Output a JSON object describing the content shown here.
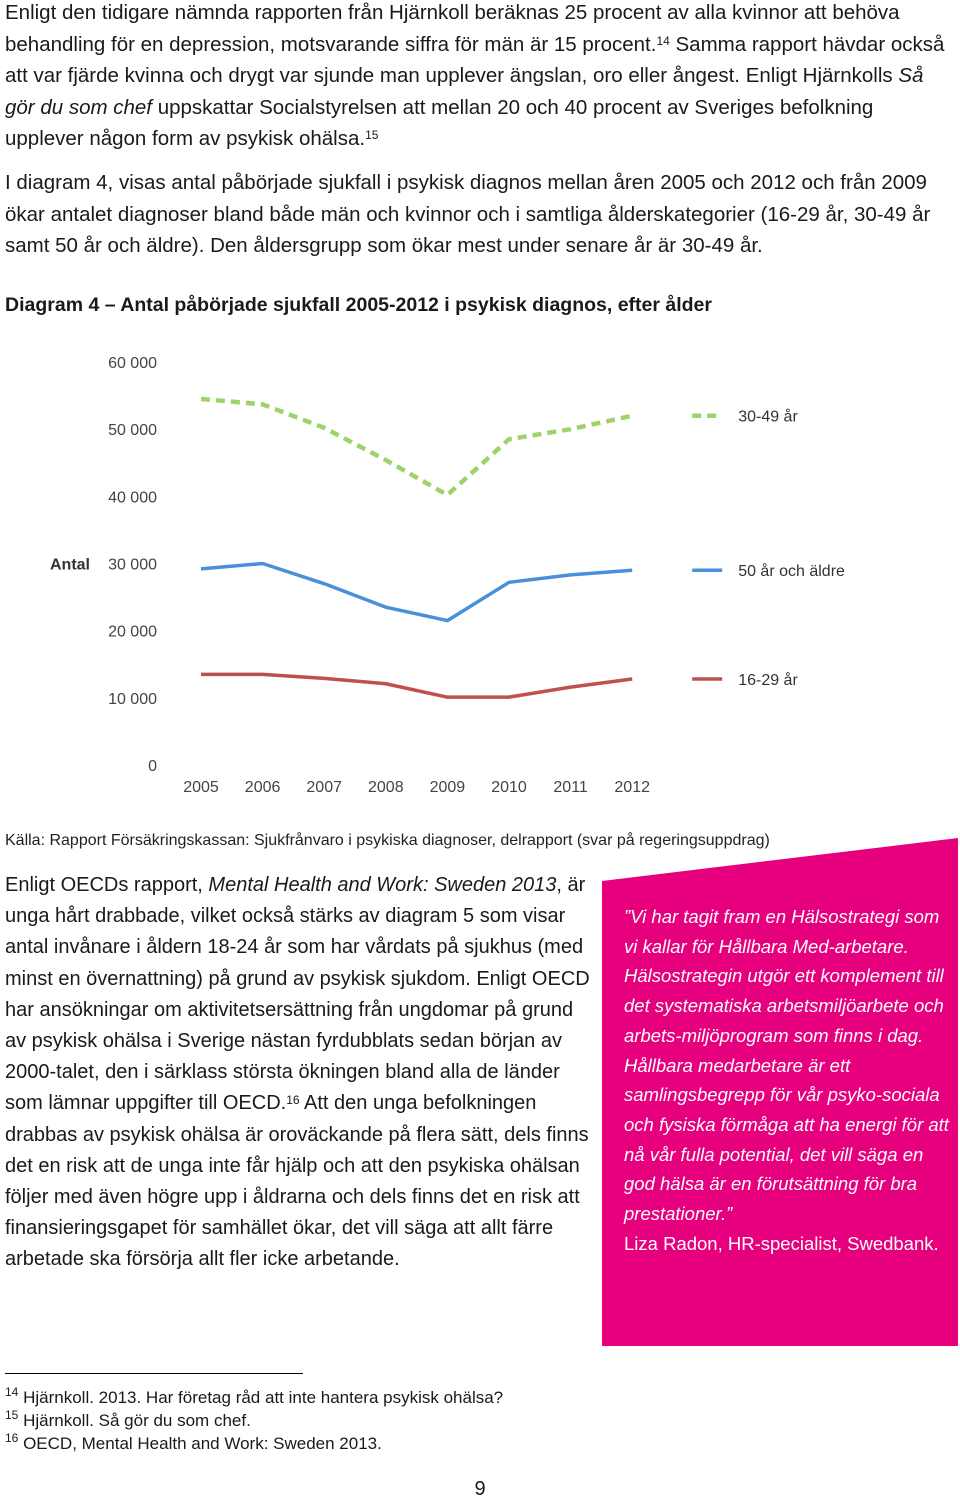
{
  "intro": {
    "p1_a": "Enligt den tidigare nämnda rapporten från Hjärnkoll beräknas 25 procent av alla kvinnor att behöva behandling för en depression, motsvarande siffra för män är 15 procent.",
    "p1_ref1": "14",
    "p1_b": " Samma rapport hävdar också att var fjärde kvinna och drygt var sjunde man upplever ängslan, oro eller ångest. Enligt Hjärnkolls ",
    "p1_italic": "Så gör du som chef",
    "p1_c": " uppskattar Socialstyrelsen att mellan 20 och 40 procent av Sveriges befolkning upplever någon form av psykisk ohälsa.",
    "p1_ref2": "15",
    "p2": "I diagram 4, visas antal påbörjade sjukfall i psykisk diagnos mellan åren 2005 och 2012 och från 2009 ökar antalet diagnoser bland både män och kvinnor och i samtliga ålderskategorier (16-29 år, 30-49 år samt 50 år och äldre). Den åldersgrupp som ökar mest under senare år är 30-49 år."
  },
  "figure_title": "Diagram 4 – Antal påbörjade sjukfall 2005-2012 i psykisk diagnos, efter ålder",
  "chart_data": {
    "type": "line",
    "ylabel": "Antal",
    "ylim": [
      0,
      60000
    ],
    "yticks": [
      "0",
      "10 000",
      "20 000",
      "30 000",
      "40 000",
      "50 000",
      "60 000"
    ],
    "ytick_values": [
      0,
      10000,
      20000,
      30000,
      40000,
      50000,
      60000
    ],
    "x": [
      "2005",
      "2006",
      "2007",
      "2008",
      "2009",
      "2010",
      "2011",
      "2012"
    ],
    "series": [
      {
        "name": "30-49 år",
        "color": "#9ed36a",
        "style": "dashed",
        "values": [
          54500,
          53700,
          50200,
          45400,
          40200,
          48500,
          50000,
          52000
        ]
      },
      {
        "name": "50 år och äldre",
        "color": "#4a90d9",
        "style": "solid",
        "values": [
          29200,
          30000,
          27000,
          23500,
          21500,
          27200,
          28300,
          29000
        ]
      },
      {
        "name": "16-29 år",
        "color": "#c0504d",
        "style": "solid",
        "values": [
          13500,
          13500,
          12900,
          12100,
          10100,
          10100,
          11600,
          12800
        ]
      }
    ]
  },
  "source_text": "Källa: Rapport Försäkringskassan: Sjukfrånvaro i psykiska diagnoser, delrapport (svar på regeringsuppdrag)",
  "body": {
    "a": "Enligt OECDs rapport, ",
    "italic": "Mental Health and Work: Sweden 2013",
    "b": ", är unga hårt drabbade, vilket också stärks av diagram 5 som visar antal invånare i åldern 18-24 år som har vårdats på sjukhus (med minst en övernattning) på grund av psykisk sjukdom. Enligt OECD har ansökningar om aktivitetsersättning från ungdomar på grund av psykisk ohälsa i Sverige nästan fyrdubblats sedan början av 2000-talet, den i särklass största ökningen bland alla de länder som lämnar uppgifter till OECD.",
    "ref": "16",
    "c": " Att den unga befolkningen drabbas av psykisk ohälsa är oroväckande på flera sätt, dels finns det en risk att de unga inte får hjälp och att den psykiska ohälsan följer med även högre upp i åldrarna och dels finns det en risk att finansieringsgapet för samhället ökar, det vill säga att allt färre arbetade ska försörja allt fler icke arbetande."
  },
  "quote": {
    "text": "”Vi har tagit fram en Hälsostrategi som vi kallar för Hållbara Med-arbetare. Hälsostrategin utgör ett komplement till det systematiska arbetsmiljöarbete och arbets-miljöprogram som finns i dag. Hållbara medarbetare är ett samlingsbegrepp för vår psyko-sociala och fysiska förmåga att ha energi för att nå vår fulla potential, det vill säga en god hälsa är en förutsättning för bra prestationer.”",
    "author": "Liza Radon, HR-specialist, Swedbank.",
    "bg_color": "#e6007e"
  },
  "footnotes": [
    {
      "num": "14",
      "text": " Hjärnkoll. 2013. Har företag råd att inte hantera psykisk ohälsa?"
    },
    {
      "num": "15",
      "text": " Hjärnkoll. Så gör du som chef."
    },
    {
      "num": "16",
      "text": " OECD, Mental Health and Work: Sweden 2013."
    }
  ],
  "page_number": "9"
}
